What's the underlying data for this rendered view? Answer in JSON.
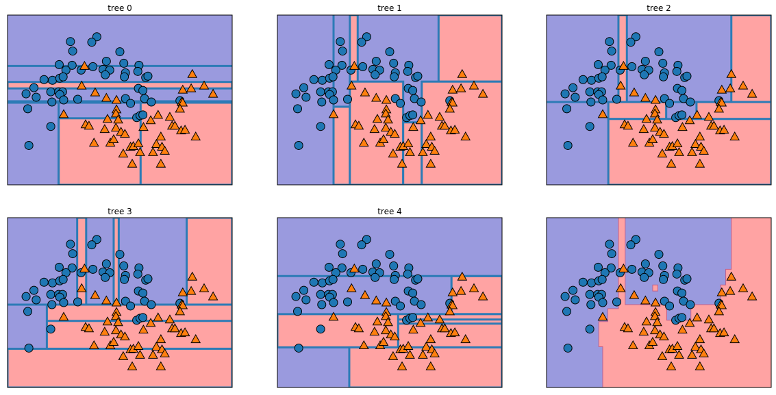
{
  "chart_data": {
    "type": "scatter",
    "xlim": [
      -1.5,
      2.5
    ],
    "ylim": [
      -1.0,
      1.5
    ],
    "grid": false,
    "colors": {
      "class0_region": "#9a9ade",
      "class1_region": "#ffa3a3",
      "split_line": "#2c7bb6",
      "class0_marker": "#1f77b4",
      "class1_marker": "#ff7f0e",
      "ensemble_boundary": "#c0608a"
    },
    "points": {
      "class0": [
        [
          0.09,
          1.18
        ],
        [
          0.0,
          1.1
        ],
        [
          -0.38,
          1.11
        ],
        [
          -0.34,
          0.97
        ],
        [
          0.5,
          0.96
        ],
        [
          -0.58,
          0.77
        ],
        [
          -0.35,
          0.76
        ],
        [
          -0.46,
          0.69
        ],
        [
          -0.19,
          0.69
        ],
        [
          0.02,
          0.74
        ],
        [
          0.26,
          0.82
        ],
        [
          0.57,
          0.79
        ],
        [
          0.84,
          0.76
        ],
        [
          0.82,
          0.67
        ],
        [
          0.2,
          0.7
        ],
        [
          0.32,
          0.69
        ],
        [
          0.24,
          0.62
        ],
        [
          0.6,
          0.65
        ],
        [
          0.58,
          0.59
        ],
        [
          0.96,
          0.58
        ],
        [
          1.0,
          0.6
        ],
        [
          -0.85,
          0.55
        ],
        [
          -0.7,
          0.54
        ],
        [
          -0.57,
          0.57
        ],
        [
          -0.51,
          0.59
        ],
        [
          -1.03,
          0.43
        ],
        [
          -1.17,
          0.34
        ],
        [
          -0.99,
          0.29
        ],
        [
          -0.73,
          0.37
        ],
        [
          -0.59,
          0.37
        ],
        [
          -0.52,
          0.37
        ],
        [
          -0.57,
          0.33
        ],
        [
          -0.71,
          0.22
        ],
        [
          -0.5,
          0.25
        ],
        [
          -0.25,
          0.26
        ],
        [
          0.83,
          0.42
        ],
        [
          0.91,
          0.39
        ],
        [
          0.6,
          0.27
        ],
        [
          0.69,
          0.2
        ],
        [
          0.94,
          0.27
        ],
        [
          1.06,
          0.22
        ],
        [
          1.57,
          0.24
        ],
        [
          -1.14,
          0.12
        ],
        [
          -0.73,
          -0.14
        ],
        [
          -1.12,
          -0.42
        ],
        [
          0.8,
          -0.01
        ],
        [
          0.86,
          0.02
        ],
        [
          0.91,
          0.03
        ]
      ],
      "class1": [
        [
          -0.13,
          0.75
        ],
        [
          1.79,
          0.63
        ],
        [
          -0.18,
          0.46
        ],
        [
          0.06,
          0.36
        ],
        [
          0.26,
          0.28
        ],
        [
          0.44,
          0.25
        ],
        [
          1.62,
          0.4
        ],
        [
          1.77,
          0.42
        ],
        [
          2.0,
          0.46
        ],
        [
          2.16,
          0.34
        ],
        [
          1.6,
          0.22
        ],
        [
          1.62,
          0.21
        ],
        [
          1.57,
          0.12
        ],
        [
          0.44,
          0.11
        ],
        [
          0.43,
          0.05
        ],
        [
          -0.5,
          0.04
        ],
        [
          0.28,
          -0.03
        ],
        [
          0.47,
          -0.04
        ],
        [
          1.18,
          0.03
        ],
        [
          1.39,
          0.0
        ],
        [
          1.05,
          -0.05
        ],
        [
          -0.11,
          -0.11
        ],
        [
          -0.05,
          -0.13
        ],
        [
          0.23,
          -0.18
        ],
        [
          0.43,
          -0.16
        ],
        [
          0.52,
          -0.22
        ],
        [
          0.59,
          -0.25
        ],
        [
          0.92,
          -0.15
        ],
        [
          1.43,
          -0.13
        ],
        [
          1.48,
          -0.13
        ],
        [
          1.59,
          -0.2
        ],
        [
          1.66,
          -0.19
        ],
        [
          1.23,
          -0.29
        ],
        [
          1.85,
          -0.29
        ],
        [
          0.04,
          -0.38
        ],
        [
          0.33,
          -0.38
        ],
        [
          0.39,
          -0.33
        ],
        [
          0.69,
          -0.44
        ],
        [
          0.74,
          -0.43
        ],
        [
          0.83,
          -0.39
        ],
        [
          1.15,
          -0.4
        ],
        [
          1.25,
          -0.44
        ],
        [
          1.3,
          -0.5
        ],
        [
          0.56,
          -0.54
        ],
        [
          0.86,
          -0.52
        ],
        [
          1.09,
          -0.52
        ],
        [
          0.72,
          -0.69
        ],
        [
          1.23,
          -0.69
        ]
      ]
    },
    "panels": [
      {
        "title": "tree 0",
        "class1_regions": [
          [
            -1.5,
            2.5,
            0.42,
            0.515
          ],
          [
            -1.5,
            2.5,
            0.21,
            0.23
          ],
          [
            -0.59,
            0.87,
            -1.0,
            -0.02
          ],
          [
            0.87,
            2.5,
            -1.0,
            0.21
          ]
        ],
        "splits": [
          [
            [
              -1.5,
              0.75
            ],
            [
              2.5,
              0.75
            ]
          ],
          [
            [
              -0.59,
              -1.0
            ],
            [
              -0.59,
              0.21
            ]
          ],
          [
            [
              -1.5,
              0.21
            ],
            [
              2.5,
              0.21
            ]
          ]
        ]
      },
      {
        "title": "tree 1",
        "class1_regions": [
          [
            -0.21,
            -0.07,
            0.52,
            1.5
          ],
          [
            1.37,
            2.5,
            0.52,
            1.5
          ],
          [
            -0.5,
            -0.21,
            -1.0,
            0.15
          ],
          [
            -0.21,
            0.74,
            -1.0,
            0.52
          ],
          [
            0.74,
            1.07,
            -1.0,
            -0.08
          ],
          [
            1.07,
            2.5,
            -1.0,
            0.52
          ]
        ],
        "splits": [
          [
            [
              -0.5,
              -1.0
            ],
            [
              -0.5,
              1.5
            ]
          ]
        ]
      },
      {
        "title": "tree 2",
        "class1_regions": [
          [
            -0.22,
            -0.07,
            0.22,
            1.5
          ],
          [
            1.79,
            2.5,
            0.22,
            1.5
          ],
          [
            -0.4,
            0.63,
            -0.03,
            0.22
          ],
          [
            1.17,
            2.5,
            -0.03,
            0.22
          ],
          [
            -0.4,
            2.5,
            -1.0,
            -0.03
          ]
        ],
        "splits": [
          [
            [
              -1.5,
              0.22
            ],
            [
              2.5,
              0.22
            ]
          ]
        ]
      },
      {
        "title": "tree 3",
        "class1_regions": [
          [
            -0.26,
            -0.1,
            0.22,
            1.5
          ],
          [
            0.39,
            0.48,
            0.22,
            1.5
          ],
          [
            1.69,
            2.5,
            0.22,
            1.5
          ],
          [
            -0.8,
            2.5,
            -0.43,
            0.22
          ],
          [
            -1.5,
            2.5,
            -1.0,
            -0.43
          ]
        ],
        "splits": [
          [
            [
              -0.8,
              -0.02
            ],
            [
              2.5,
              -0.02
            ]
          ],
          [
            [
              -1.5,
              0.22
            ],
            [
              2.5,
              0.22
            ]
          ]
        ]
      },
      {
        "title": "tree 4",
        "class1_regions": [
          [
            1.6,
            2.5,
            0.08,
            0.64
          ],
          [
            -1.5,
            2.5,
            -0.41,
            0.08
          ],
          [
            -0.22,
            2.5,
            -1.0,
            -0.41
          ]
        ],
        "splits": [
          [
            [
              -1.5,
              0.64
            ],
            [
              2.5,
              0.64
            ]
          ],
          [
            [
              0.65,
              -0.41
            ],
            [
              0.65,
              0.08
            ]
          ],
          [
            [
              0.65,
              0.0
            ],
            [
              2.5,
              0.0
            ]
          ],
          [
            [
              0.65,
              -0.06
            ],
            [
              2.5,
              -0.06
            ]
          ]
        ]
      },
      {
        "title": "",
        "class1_polygons": [
          [
            [
              -0.5,
              -1.0
            ],
            [
              -0.5,
              -0.4
            ],
            [
              -0.57,
              -0.4
            ],
            [
              -0.57,
              -0.03
            ],
            [
              -0.41,
              -0.03
            ],
            [
              -0.41,
              0.16
            ],
            [
              -0.22,
              0.16
            ],
            [
              -0.22,
              1.5
            ],
            [
              -0.1,
              1.5
            ],
            [
              -0.1,
              0.22
            ],
            [
              0.64,
              0.22
            ],
            [
              0.64,
              -0.01
            ],
            [
              1.07,
              -0.01
            ],
            [
              1.07,
              0.22
            ],
            [
              1.6,
              0.22
            ],
            [
              1.6,
              0.51
            ],
            [
              1.69,
              0.51
            ],
            [
              1.69,
              0.74
            ],
            [
              1.79,
              0.74
            ],
            [
              1.79,
              1.5
            ],
            [
              2.5,
              1.5
            ],
            [
              2.5,
              -1.0
            ]
          ],
          [
            [
              0.39,
              0.42
            ],
            [
              0.48,
              0.42
            ],
            [
              0.48,
              0.51
            ],
            [
              0.39,
              0.51
            ]
          ]
        ]
      }
    ]
  }
}
